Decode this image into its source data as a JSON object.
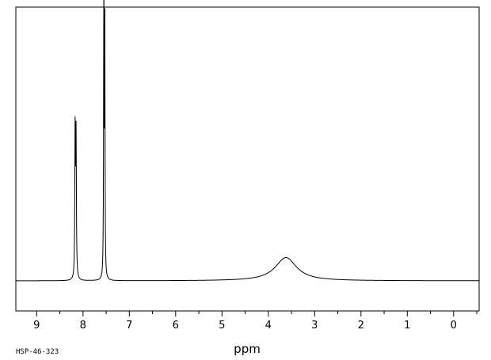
{
  "chart_data": {
    "type": "line",
    "title": "",
    "xlabel": "ppm",
    "ylabel": "",
    "footer_label": "HSP-46-323",
    "xlim": [
      9.45,
      -0.55
    ],
    "x_reversed": true,
    "ylim": [
      -0.11,
      1.0
    ],
    "grid": false,
    "major_ticks": [
      9,
      8,
      7,
      6,
      5,
      4,
      3,
      2,
      1,
      0
    ],
    "minor_tick_step": 0.5,
    "peaks": [
      {
        "x": 8.17,
        "height": 0.54,
        "width": 0.008
      },
      {
        "x": 8.15,
        "height": 0.51,
        "width": 0.008
      },
      {
        "x": 7.55,
        "height": 0.99,
        "width": 0.006
      },
      {
        "x": 7.53,
        "height": 0.93,
        "width": 0.006
      },
      {
        "x": 7.555,
        "height": 0.14,
        "width": 0.006
      },
      {
        "x": 3.62,
        "height": 0.085,
        "width": 0.28
      }
    ],
    "baseline": 0.0
  }
}
